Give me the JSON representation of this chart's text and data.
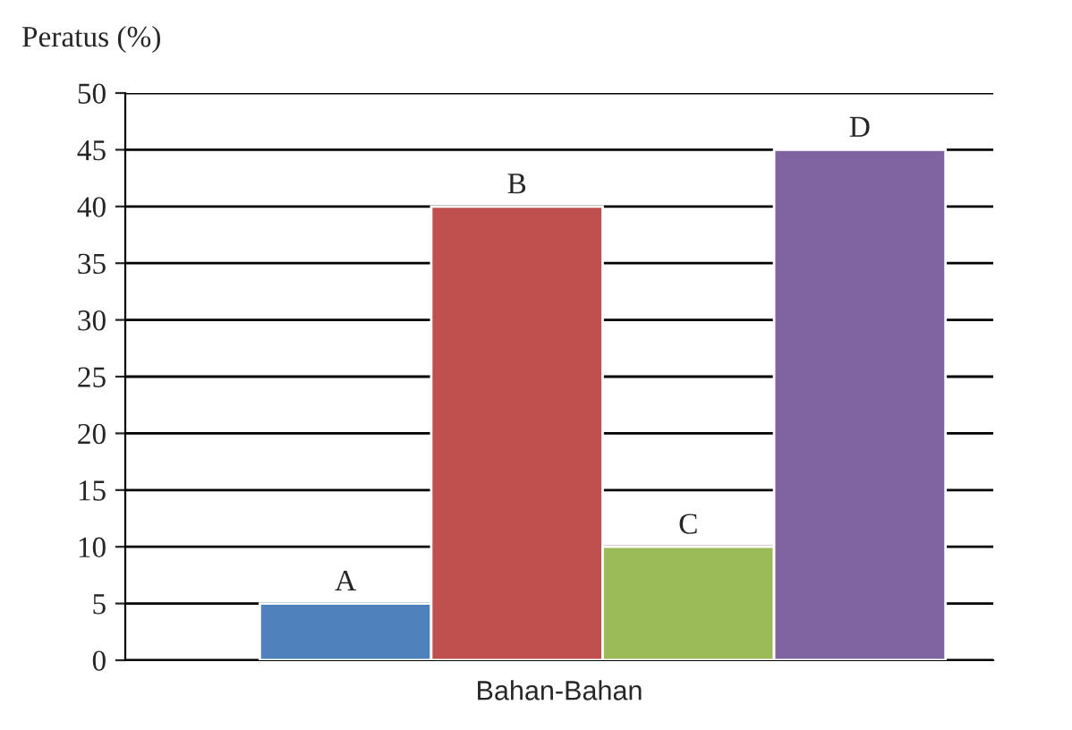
{
  "chart_data": {
    "type": "bar",
    "ylabel": "Peratus (%)",
    "categories": [
      "Bahan-Bahan"
    ],
    "series": [
      {
        "name": "A",
        "color": "#4f81bd",
        "values": [
          5
        ]
      },
      {
        "name": "B",
        "color": "#c0504d",
        "values": [
          40
        ]
      },
      {
        "name": "C",
        "color": "#9bbb59",
        "values": [
          10
        ]
      },
      {
        "name": "D",
        "color": "#8064a2",
        "values": [
          45
        ]
      }
    ],
    "ylim": [
      0,
      50
    ],
    "yticks": [
      0,
      5,
      10,
      15,
      20,
      25,
      30,
      35,
      40,
      45,
      50
    ],
    "grid": "y",
    "legend": false
  }
}
